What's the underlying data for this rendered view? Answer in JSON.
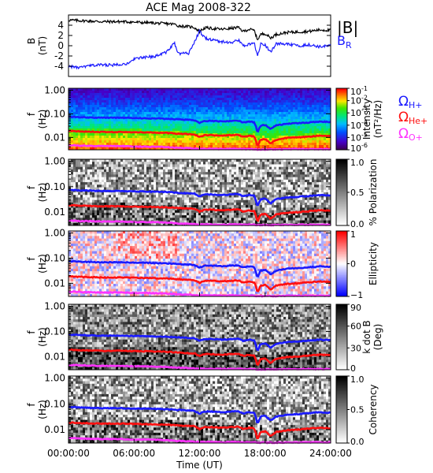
{
  "title": "ACE Mag 2008-322",
  "colors": {
    "H": "#1a1aff",
    "He": "#ff1010",
    "O": "#ff33ff",
    "B_total": "#000000",
    "B_R": "#1a1aff"
  },
  "time_axis": {
    "label": "Time (UT)",
    "range_hours": [
      0,
      24
    ],
    "ticks": [
      {
        "h": 0,
        "label": "00:00:00"
      },
      {
        "h": 6,
        "label": "06:00:00"
      },
      {
        "h": 12,
        "label": "12:00:00"
      },
      {
        "h": 18,
        "label": "18:00:00"
      },
      {
        "h": 24,
        "label": "24:00:00"
      }
    ]
  },
  "freq_ticks": [
    {
      "v": 1.0,
      "label": "1.00"
    },
    {
      "v": 0.1,
      "label": "0.10"
    },
    {
      "v": 0.01,
      "label": "0.01"
    }
  ],
  "legends": {
    "H": {
      "symbol": "Ω",
      "sub": "H+"
    },
    "He": {
      "symbol": "Ω",
      "sub": "He+"
    },
    "O": {
      "symbol": "Ω",
      "sub": "O+"
    }
  },
  "chart_data": [
    {
      "type": "line",
      "title": "ACE Mag 2008-322",
      "xlabel": "",
      "ylabel": "B",
      "yunit": "(nT)",
      "ylim": [
        -6,
        6
      ],
      "yticks": [
        4,
        2,
        0,
        -2,
        -4
      ],
      "legend_placement": "right",
      "series": [
        {
          "name": "|B|",
          "x": [
            0,
            1,
            2,
            3,
            4,
            5,
            6,
            7,
            8,
            9,
            9.7,
            10,
            11,
            11.5,
            12,
            12.5,
            13,
            14,
            15,
            15.5,
            16,
            16.5,
            17,
            17.3,
            17.6,
            18,
            18.5,
            19,
            20,
            21,
            22,
            23,
            24
          ],
          "y": [
            5.0,
            4.9,
            4.8,
            4.7,
            4.7,
            4.7,
            4.6,
            4.5,
            4.4,
            4.3,
            4.2,
            3.9,
            3.7,
            3.6,
            2.8,
            3.5,
            3.4,
            3.2,
            3.4,
            3.6,
            2.8,
            3.2,
            3.0,
            1.2,
            2.2,
            2.4,
            1.5,
            2.2,
            2.6,
            2.7,
            2.8,
            3.1,
            3.0
          ]
        },
        {
          "name": "B",
          "sub": "R",
          "x": [
            0,
            1,
            2,
            3,
            4,
            5,
            5.5,
            6,
            7,
            8,
            9,
            9.7,
            10,
            11,
            12,
            12.5,
            13,
            14,
            15,
            15.5,
            16,
            17,
            17.3,
            17.6,
            18,
            18.5,
            19,
            20,
            21,
            22,
            23,
            24
          ],
          "y": [
            -4.0,
            -4.3,
            -3.9,
            -3.7,
            -3.8,
            -3.5,
            -3.6,
            -2.5,
            -2.3,
            -2.0,
            -1.2,
            0.5,
            -1.5,
            -1.5,
            2.8,
            1.5,
            1.2,
            0.8,
            0.6,
            1.2,
            0.0,
            0.5,
            -2.0,
            0.3,
            0.2,
            -1.2,
            0.4,
            0.3,
            0.0,
            0.2,
            -0.2,
            0.0
          ]
        }
      ]
    },
    {
      "type": "heatmap",
      "ylabel": "f",
      "yunit": "(Hz)",
      "yscale": "log",
      "ylim": [
        0.003,
        1.2
      ],
      "colorbar": {
        "label": "Intensity",
        "unit": "(nT²/Hz)",
        "scale": "log",
        "ticks": [
          {
            "v": -1,
            "label": "10",
            "sup": "-1"
          },
          {
            "v": -2,
            "label": "10",
            "sup": "-2"
          },
          {
            "v": -3,
            "label": "10",
            "sup": "-3"
          },
          {
            "v": -4,
            "label": "10",
            "sup": "-4"
          },
          {
            "v": -5,
            "label": "10",
            "sup": "-5"
          },
          {
            "v": -6,
            "label": "10",
            "sup": "-6"
          }
        ]
      },
      "gyrofrequency_lines": [
        "H",
        "He",
        "O"
      ]
    },
    {
      "type": "heatmap",
      "ylabel": "f",
      "yunit": "(Hz)",
      "yscale": "log",
      "colorbar": {
        "label": "% Polarization",
        "range": [
          0,
          1
        ],
        "ticks": [
          {
            "v": 1.0,
            "label": "1.0"
          },
          {
            "v": 0.5,
            "label": "0.5"
          },
          {
            "v": 0.0,
            "label": "0.0"
          }
        ]
      },
      "gyrofrequency_lines": [
        "H",
        "He",
        "O"
      ]
    },
    {
      "type": "heatmap",
      "ylabel": "f",
      "yunit": "(Hz)",
      "yscale": "log",
      "colorbar": {
        "label": "Ellipticity",
        "range": [
          -1,
          1
        ],
        "ticks": [
          {
            "v": 1,
            "label": "1"
          },
          {
            "v": 0,
            "label": "0"
          },
          {
            "v": -1,
            "label": "−1"
          }
        ]
      },
      "gyrofrequency_lines": [
        "H",
        "He",
        "O"
      ]
    },
    {
      "type": "heatmap",
      "ylabel": "f",
      "yunit": "(Hz)",
      "yscale": "log",
      "colorbar": {
        "label": "k dot B",
        "unit": "(Deg)",
        "range": [
          0,
          90
        ],
        "ticks": [
          {
            "v": 90,
            "label": "90"
          },
          {
            "v": 60,
            "label": "60"
          },
          {
            "v": 30,
            "label": "30"
          },
          {
            "v": 0,
            "label": "0"
          }
        ]
      },
      "gyrofrequency_lines": [
        "H",
        "He",
        "O"
      ]
    },
    {
      "type": "heatmap",
      "ylabel": "f",
      "yunit": "(Hz)",
      "yscale": "log",
      "xlabel": "Time (UT)",
      "colorbar": {
        "label": "Coherency",
        "range": [
          0,
          1
        ],
        "ticks": [
          {
            "v": 1.0,
            "label": "1.0"
          },
          {
            "v": 0.5,
            "label": "0.5"
          },
          {
            "v": 0.0,
            "label": "0.0"
          }
        ]
      },
      "gyrofrequency_lines": [
        "H",
        "He",
        "O"
      ]
    }
  ],
  "gyrofrequency": {
    "x": [
      0,
      1,
      2,
      3,
      4,
      5,
      6,
      7,
      8,
      9,
      10,
      11,
      11.5,
      12,
      12.5,
      13,
      14,
      15,
      15.5,
      16,
      16.5,
      17,
      17.3,
      17.6,
      18,
      18.5,
      19,
      20,
      21,
      22,
      23,
      24
    ],
    "H": [
      0.075,
      0.072,
      0.07,
      0.068,
      0.068,
      0.068,
      0.066,
      0.065,
      0.063,
      0.062,
      0.058,
      0.055,
      0.054,
      0.042,
      0.05,
      0.05,
      0.047,
      0.05,
      0.052,
      0.042,
      0.047,
      0.044,
      0.016,
      0.032,
      0.034,
      0.022,
      0.032,
      0.038,
      0.04,
      0.043,
      0.047,
      0.045
    ],
    "He": [
      0.0188,
      0.018,
      0.0175,
      0.017,
      0.017,
      0.017,
      0.0165,
      0.0163,
      0.0158,
      0.0155,
      0.0145,
      0.0138,
      0.0135,
      0.0105,
      0.0125,
      0.0125,
      0.0118,
      0.0125,
      0.013,
      0.0105,
      0.0118,
      0.011,
      0.004,
      0.008,
      0.0085,
      0.0055,
      0.008,
      0.0095,
      0.01,
      0.0108,
      0.0118,
      0.0113
    ],
    "O": [
      0.0047,
      0.0045,
      0.0044,
      0.0043,
      0.0043,
      0.0043,
      0.0041,
      0.0041,
      0.004,
      0.0039,
      0.0036,
      0.0035,
      0.0034,
      0.0033,
      0.0033,
      0.0033,
      0.0032,
      0.0033,
      0.0033,
      0.0032,
      0.0032,
      0.0032,
      0.0031,
      0.0031,
      0.0031,
      0.0031,
      0.0031,
      0.0032,
      0.0032,
      0.0032,
      0.0032,
      0.0032
    ]
  }
}
